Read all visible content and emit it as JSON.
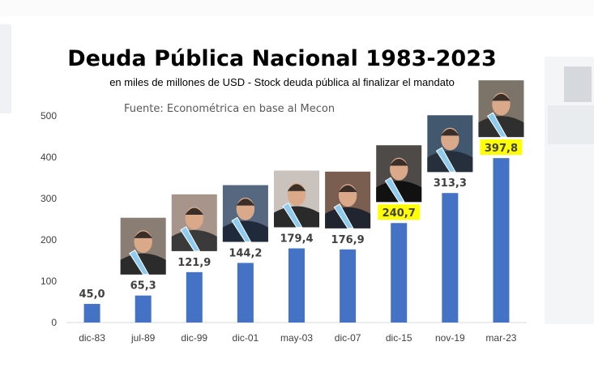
{
  "chart_data": {
    "type": "bar",
    "title": "Deuda Pública Nacional 1983-2023",
    "subtitle": "en miles de millones de USD - Stock deuda pública al finalizar el mandato",
    "source": "Fuente: Econométrica en base al Mecon",
    "categories": [
      "dic-83",
      "jul-89",
      "dic-99",
      "dic-01",
      "may-03",
      "dic-07",
      "dic-15",
      "nov-19",
      "mar-23"
    ],
    "values": [
      45.0,
      65.3,
      121.9,
      144.2,
      179.4,
      176.9,
      240.7,
      313.3,
      397.8
    ],
    "data_labels": [
      "45,0",
      "65,3",
      "121,9",
      "144,2",
      "179,4",
      "176,9",
      "240,7",
      "313,3",
      "397,8"
    ],
    "highlighted_labels": [
      "240,7",
      "397,8"
    ],
    "ylim": [
      0,
      500
    ],
    "yticks": [
      0,
      100,
      200,
      300,
      400,
      500
    ],
    "ytick_labels": [
      "0",
      "100",
      "200",
      "300",
      "400",
      "500"
    ],
    "xlabel": "",
    "ylabel": "",
    "grid": false,
    "legend": "none",
    "bar_color": "#4472c4",
    "highlight_color": "#ffff00",
    "label_color": "#404040",
    "portrait_icons": [
      "portrait-icon",
      "portrait-icon",
      "portrait-icon",
      "portrait-icon",
      "portrait-icon",
      "portrait-icon",
      "portrait-icon",
      "portrait-icon"
    ]
  }
}
